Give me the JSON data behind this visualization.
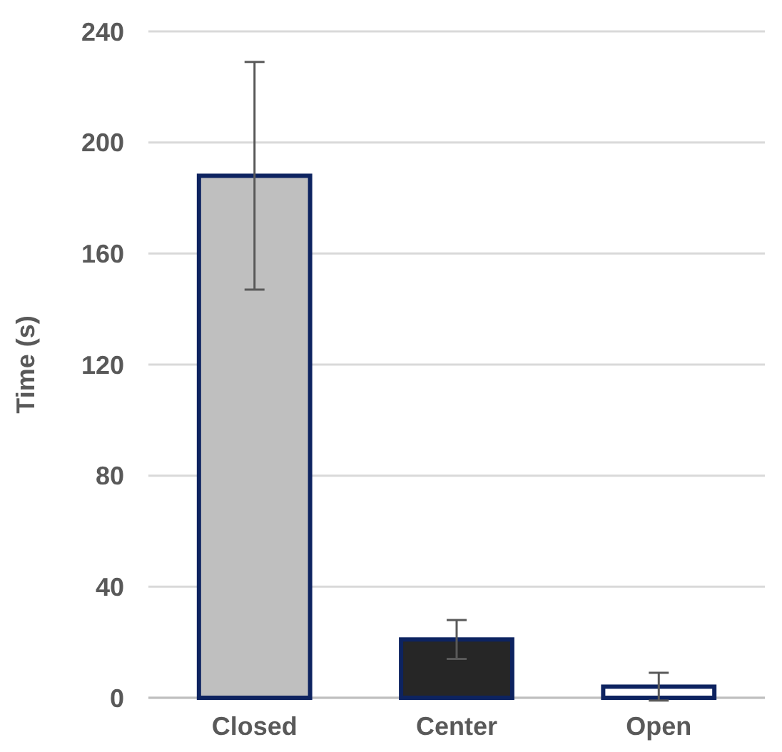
{
  "chart_data": {
    "type": "bar",
    "ylabel": "Time (s)",
    "categories": [
      "Closed",
      "Center",
      "Open"
    ],
    "values": [
      188,
      21,
      4
    ],
    "errors": [
      41,
      7,
      5
    ],
    "colors": [
      "#bfbfbf",
      "#262626",
      "#ffffff"
    ],
    "ylim": [
      0,
      240
    ],
    "yticks": [
      0,
      40,
      80,
      120,
      160,
      200,
      240
    ],
    "grid": "y"
  }
}
